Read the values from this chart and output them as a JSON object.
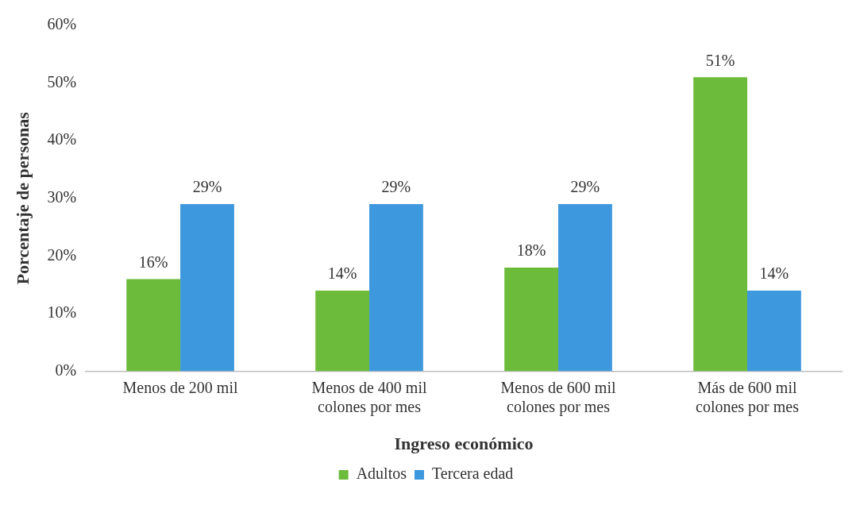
{
  "chart_data": {
    "type": "bar",
    "xlabel": "Ingreso económico",
    "ylabel": "Porcentaje de personas",
    "categories": [
      "Menos de 200 mil",
      "Menos de 400 mil colones por mes",
      "Menos de 600 mil colones por mes",
      "Más de 600 mil colones por mes"
    ],
    "series": [
      {
        "name": "Adultos",
        "color": "#6dbb3a",
        "values": [
          16,
          14,
          18,
          51
        ],
        "value_labels": [
          "16%",
          "14%",
          "18%",
          "51%"
        ]
      },
      {
        "name": "Tercera edad",
        "color": "#3d98de",
        "values": [
          29,
          29,
          29,
          14
        ],
        "value_labels": [
          "29%",
          "29%",
          "29%",
          "14%"
        ]
      }
    ],
    "ylim": [
      0,
      60
    ],
    "yticks": [
      {
        "value": 0,
        "label": "0%"
      },
      {
        "value": 10,
        "label": "10%"
      },
      {
        "value": 20,
        "label": "20%"
      },
      {
        "value": 30,
        "label": "30%"
      },
      {
        "value": 40,
        "label": "40%"
      },
      {
        "value": 50,
        "label": "50%"
      },
      {
        "value": 60,
        "label": "60%"
      }
    ],
    "grid": false,
    "legend": "bottom"
  }
}
